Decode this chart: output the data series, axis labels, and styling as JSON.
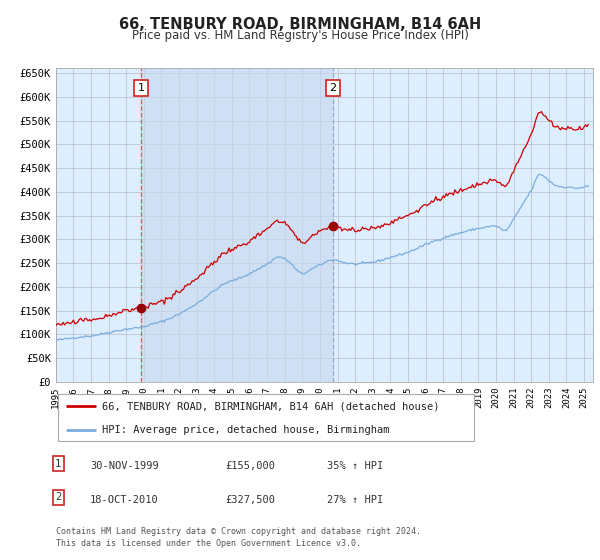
{
  "title": "66, TENBURY ROAD, BIRMINGHAM, B14 6AH",
  "subtitle": "Price paid vs. HM Land Registry's House Price Index (HPI)",
  "line1_label": "66, TENBURY ROAD, BIRMINGHAM, B14 6AH (detached house)",
  "line2_label": "HPI: Average price, detached house, Birmingham",
  "purchase1_year": 1999,
  "purchase1_month": 11,
  "purchase1_price": 155000,
  "purchase2_year": 2010,
  "purchase2_month": 10,
  "purchase2_price": 327500,
  "red_line_color": "#cc0000",
  "blue_line_color": "#7aaddd",
  "bg_color": "#ffffff",
  "plot_bg_color": "#ddeeff",
  "grid_color": "#bbbbcc",
  "ylim": [
    0,
    660000
  ],
  "yticks": [
    0,
    50000,
    100000,
    150000,
    200000,
    250000,
    300000,
    350000,
    400000,
    450000,
    500000,
    550000,
    600000,
    650000
  ],
  "footer": "Contains HM Land Registry data © Crown copyright and database right 2024.\nThis data is licensed under the Open Government Licence v3.0.",
  "marker_color": "#990000",
  "vline1_color": "#dd4444",
  "vline2_color": "#8899bb",
  "span_color": "#c8d8ee",
  "box_edge_color": "#cc2222",
  "legend_edge_color": "#aaaaaa"
}
